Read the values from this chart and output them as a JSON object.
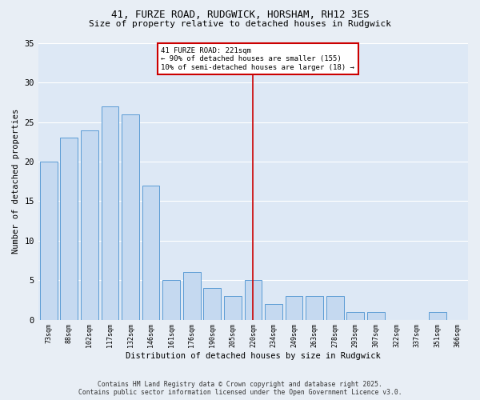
{
  "title1": "41, FURZE ROAD, RUDGWICK, HORSHAM, RH12 3ES",
  "title2": "Size of property relative to detached houses in Rudgwick",
  "xlabel": "Distribution of detached houses by size in Rudgwick",
  "ylabel": "Number of detached properties",
  "categories": [
    "73sqm",
    "88sqm",
    "102sqm",
    "117sqm",
    "132sqm",
    "146sqm",
    "161sqm",
    "176sqm",
    "190sqm",
    "205sqm",
    "220sqm",
    "234sqm",
    "249sqm",
    "263sqm",
    "278sqm",
    "293sqm",
    "307sqm",
    "322sqm",
    "337sqm",
    "351sqm",
    "366sqm"
  ],
  "values": [
    20,
    23,
    24,
    27,
    26,
    17,
    5,
    6,
    4,
    3,
    5,
    2,
    3,
    3,
    3,
    1,
    1,
    0,
    0,
    1,
    0
  ],
  "bar_color": "#c5d9f0",
  "bar_edge_color": "#5b9bd5",
  "vline_index": 10,
  "annotation_text_line1": "41 FURZE ROAD: 221sqm",
  "annotation_text_line2": "← 90% of detached houses are smaller (155)",
  "annotation_text_line3": "10% of semi-detached houses are larger (18) →",
  "annotation_box_facecolor": "#ffffff",
  "annotation_box_edgecolor": "#cc0000",
  "vline_color": "#cc0000",
  "ylim": [
    0,
    35
  ],
  "yticks": [
    0,
    5,
    10,
    15,
    20,
    25,
    30,
    35
  ],
  "fig_facecolor": "#e8eef5",
  "ax_facecolor": "#dde8f5",
  "grid_color": "#ffffff",
  "footer1": "Contains HM Land Registry data © Crown copyright and database right 2025.",
  "footer2": "Contains public sector information licensed under the Open Government Licence v3.0."
}
